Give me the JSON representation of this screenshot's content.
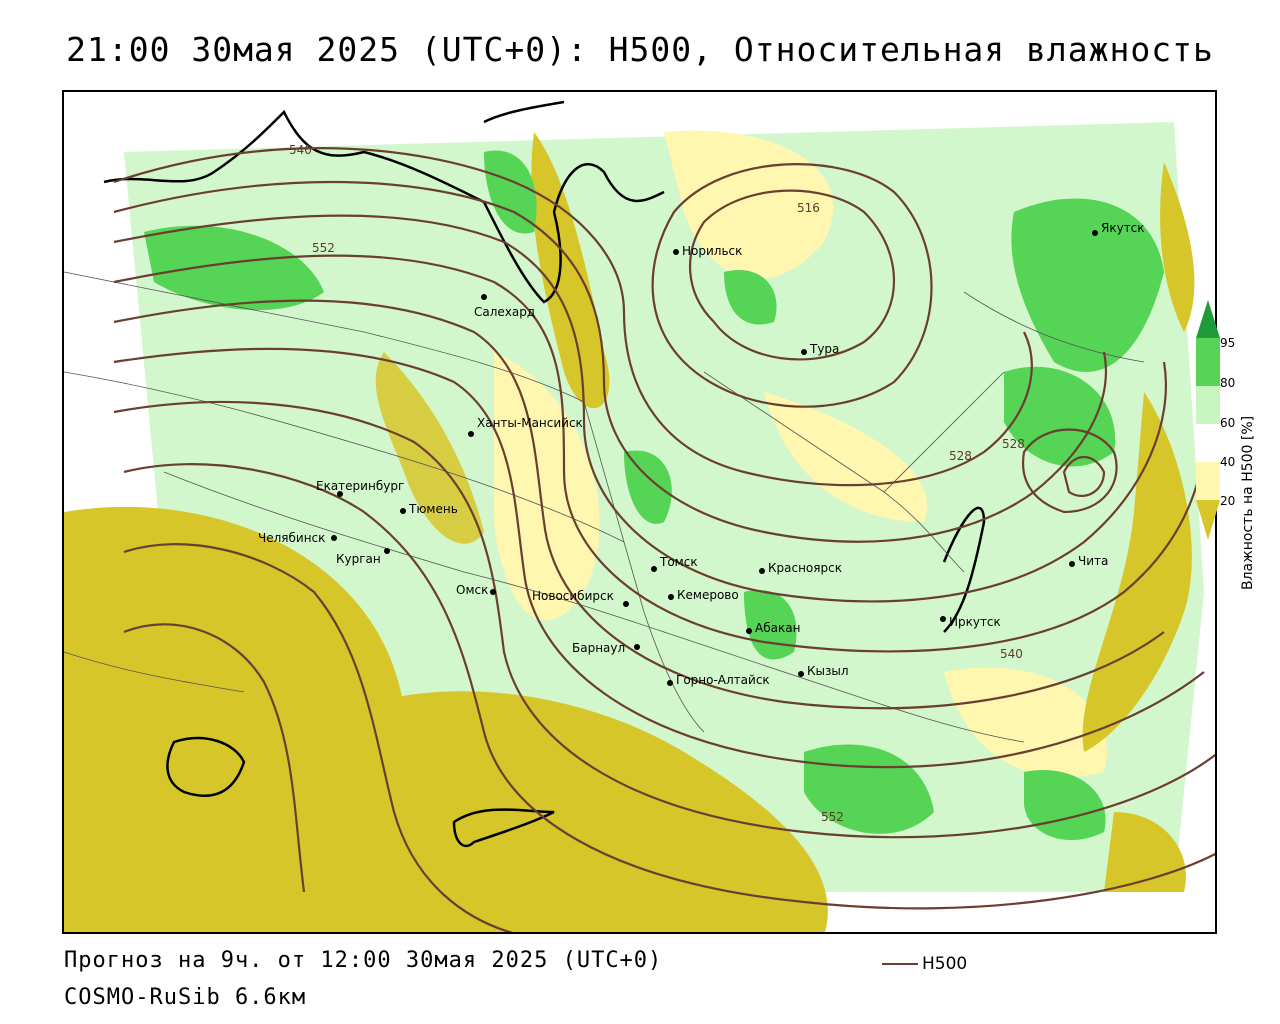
{
  "title": "21:00 30мая 2025 (UTC+0): H500, Относительная влажность",
  "footer": {
    "forecast": "Прогноз на 9ч. от 12:00 30мая 2025 (UTC+0)",
    "model": "COSMO-RuSib 6.6км"
  },
  "line_legend": {
    "label": "H500",
    "color": "#6b3f2f"
  },
  "legend": {
    "title": "Влажность на H500 [%]",
    "ticks": [
      "95",
      "80",
      "60",
      "40",
      "20"
    ],
    "colors": {
      "dry_olive": "#d6c62a",
      "light_yellow": "#fff6b0",
      "white": "#ffffff",
      "light_green": "#c8f5c0",
      "green": "#55d455",
      "dark_green": "#1f9c3a"
    }
  },
  "cities": [
    {
      "name": "Якутск"
    },
    {
      "name": "Норильск"
    },
    {
      "name": "Салехард"
    },
    {
      "name": "Тура"
    },
    {
      "name": "Ханты-Мансийск"
    },
    {
      "name": "Екатеринбург"
    },
    {
      "name": "Тюмень"
    },
    {
      "name": "Челябинск"
    },
    {
      "name": "Курган"
    },
    {
      "name": "Омск"
    },
    {
      "name": "Новосибирск"
    },
    {
      "name": "Томск"
    },
    {
      "name": "Кемерово"
    },
    {
      "name": "Красноярск"
    },
    {
      "name": "Барнаул"
    },
    {
      "name": "Абакан"
    },
    {
      "name": "Горно-Алтайск"
    },
    {
      "name": "Кызыл"
    },
    {
      "name": "Иркутск"
    },
    {
      "name": "Чита"
    }
  ],
  "contour_labels": [
    "540",
    "552",
    "516",
    "528",
    "528",
    "540",
    "552"
  ]
}
